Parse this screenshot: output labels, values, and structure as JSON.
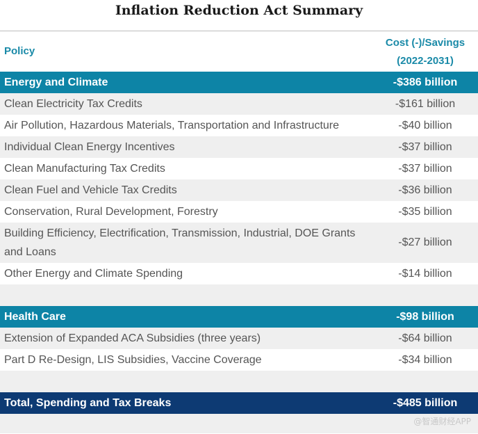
{
  "title": "Inflation Reduction Act Summary",
  "header": {
    "policy": "Policy",
    "cost_line1": "Cost (-)/Savings",
    "cost_line2": "(2022-2031)"
  },
  "energy": {
    "label": "Energy and Climate",
    "value": "-$386 billion",
    "rows": [
      {
        "label": "Clean Electricity Tax Credits",
        "value": "-$161 billion"
      },
      {
        "label": "Air Pollution, Hazardous Materials, Transportation and Infrastructure",
        "value": "-$40 billion"
      },
      {
        "label": "Individual Clean Energy Incentives",
        "value": "-$37 billion"
      },
      {
        "label": "Clean Manufacturing Tax Credits",
        "value": "-$37 billion"
      },
      {
        "label": "Clean Fuel and Vehicle Tax Credits",
        "value": "-$36 billion"
      },
      {
        "label": "Conservation, Rural Development, Forestry",
        "value": "-$35 billion"
      },
      {
        "label": "Building Efficiency, Electrification, Transmission, Industrial, DOE Grants and Loans",
        "value": "-$27 billion"
      },
      {
        "label": "Other Energy and Climate Spending",
        "value": "-$14 billion"
      }
    ]
  },
  "health": {
    "label": "Health Care",
    "value": "-$98 billion",
    "rows": [
      {
        "label": "Extension of Expanded ACA Subsidies (three years)",
        "value": "-$64 billion"
      },
      {
        "label": "Part D Re-Design, LIS Subsidies, Vaccine Coverage",
        "value": "-$34 billion"
      }
    ]
  },
  "total": {
    "label": "Total, Spending and Tax Breaks",
    "value": "-$485 billion"
  },
  "watermark": "@智通财经APP"
}
